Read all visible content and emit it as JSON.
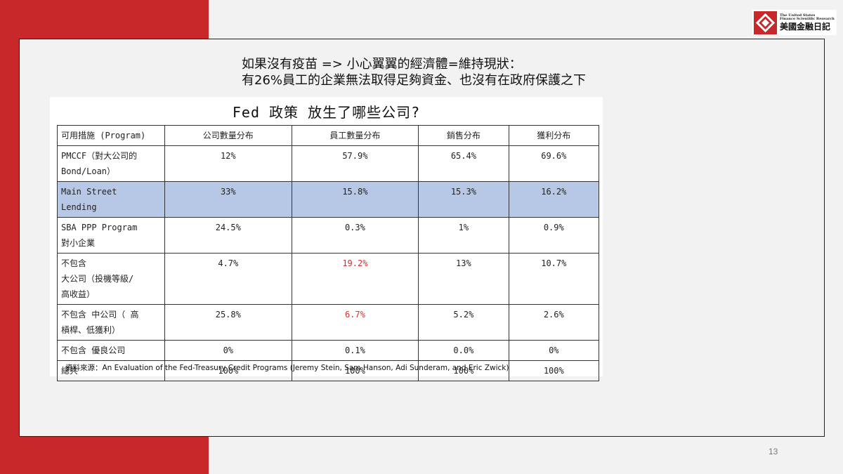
{
  "logo": {
    "en_line1": "The United States",
    "en_line2": "Finance Scientific Research",
    "cn": "美國金融日記"
  },
  "headline": {
    "line1": "如果沒有疫苗 => 小心翼翼的經濟體=維持現狀：",
    "line2": "有26%員工的企業無法取得足夠資金、也沒有在政府保護之下"
  },
  "figure": {
    "title": "Fed 政策 放生了哪些公司?",
    "headers": [
      "可用措施 (Program)",
      "公司數量分布",
      "員工數量分布",
      "銷售分布",
      "獲利分布"
    ],
    "rows": [
      {
        "label": "PMCCF（對大公司的\nBond/Loan）",
        "values": [
          "12%",
          "57.9%",
          "65.4%",
          "69.6%"
        ]
      },
      {
        "label": "Main Street\nLending",
        "values": [
          "33%",
          "15.8%",
          "15.3%",
          "16.2%"
        ]
      },
      {
        "label": "SBA PPP Program\n對小企業",
        "values": [
          "24.5%",
          "0.3%",
          "1%",
          "0.9%"
        ]
      },
      {
        "label": "不包含\n大公司（投機等級/\n高收益）",
        "values": [
          "4.7%",
          "19.2%",
          "13%",
          "10.7%"
        ]
      },
      {
        "label": "不包含 中公司（ 高\n槓桿、低獲利）",
        "values": [
          "25.8%",
          "6.7%",
          "5.2%",
          "2.6%"
        ]
      },
      {
        "label": "不包含 優良公司",
        "values": [
          "0%",
          "0.1%",
          "0.0%",
          "0%"
        ]
      },
      {
        "label": "總共",
        "values": [
          "100%",
          "100%",
          "100%",
          "100%"
        ]
      }
    ],
    "highlight_color": "#b7c8e6",
    "emphasis_color": "#d73030",
    "source": "資料來源：An Evaluation of the Fed-Treasury Credit Programs (Jeremy Stein, Sam Hanson, Adi Sunderam, and Eric Zwick)"
  },
  "page_number": "13",
  "colors": {
    "accent_red": "#c8282a",
    "background": "#f2f2f2"
  }
}
